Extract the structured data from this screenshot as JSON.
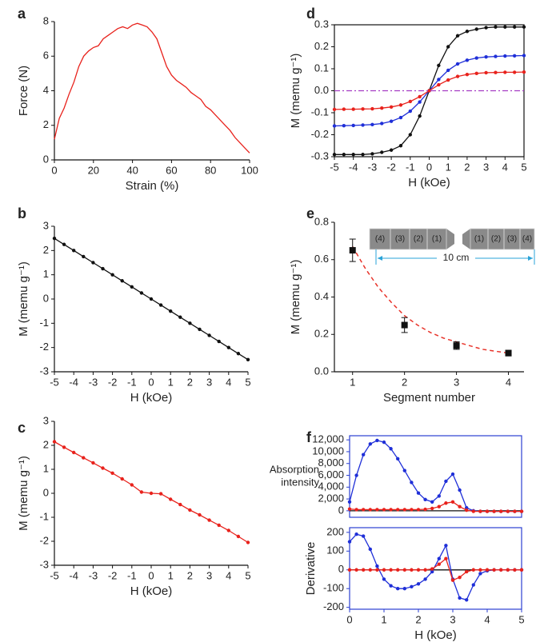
{
  "chart_data": [
    {
      "type": "line",
      "label": "a",
      "xlabel": "Strain (%)",
      "ylabel": "Force (N)",
      "frame": "open",
      "xlim": [
        0,
        100
      ],
      "xticks": [
        0,
        20,
        40,
        60,
        80,
        100
      ],
      "ylim": [
        0,
        8
      ],
      "yticks": [
        0,
        2,
        4,
        6,
        8
      ],
      "x": [
        0,
        2.5,
        5,
        7.5,
        10,
        12.5,
        15,
        17.5,
        20,
        22.5,
        25,
        27.5,
        30,
        32.5,
        35,
        37.5,
        40,
        42.5,
        45,
        47.5,
        50,
        52.5,
        55,
        57.5,
        60,
        62.5,
        65,
        67.5,
        70,
        72.5,
        75,
        77.5,
        80,
        82.5,
        85,
        87.5,
        90,
        92.5,
        95,
        97.5,
        100
      ],
      "series": [
        {
          "color": "#e8221c",
          "values": [
            1.2,
            2.4,
            3.0,
            3.8,
            4.5,
            5.4,
            6.0,
            6.3,
            6.5,
            6.6,
            7.0,
            7.2,
            7.4,
            7.6,
            7.7,
            7.6,
            7.8,
            7.9,
            7.8,
            7.7,
            7.4,
            7.0,
            6.2,
            5.4,
            4.9,
            4.6,
            4.4,
            4.2,
            3.9,
            3.7,
            3.5,
            3.1,
            2.9,
            2.6,
            2.3,
            2.0,
            1.7,
            1.3,
            1.0,
            0.7,
            0.4
          ]
        }
      ]
    },
    {
      "type": "line",
      "label": "b",
      "xlabel": "H (kOe)",
      "ylabel": "M (memu g⁻¹)",
      "frame": "open",
      "xlim": [
        -5,
        5
      ],
      "xticks": [
        -5,
        -4,
        -3,
        -2,
        -1,
        0,
        1,
        2,
        3,
        4,
        5
      ],
      "ylim": [
        -3,
        3
      ],
      "yticks": [
        -3,
        -2,
        -1,
        0,
        1,
        2,
        3
      ],
      "x": [
        -5,
        -4.5,
        -4,
        -3.5,
        -3,
        -2.5,
        -2,
        -1.5,
        -1,
        -0.5,
        0,
        0.5,
        1,
        1.5,
        2,
        2.5,
        3,
        3.5,
        4,
        4.5,
        5
      ],
      "series": [
        {
          "color": "#111111",
          "marker": true,
          "values": [
            2.5,
            2.25,
            2.0,
            1.75,
            1.5,
            1.25,
            1.0,
            0.75,
            0.5,
            0.25,
            0,
            -0.25,
            -0.5,
            -0.75,
            -1.0,
            -1.25,
            -1.5,
            -1.75,
            -2.0,
            -2.25,
            -2.5
          ]
        }
      ]
    },
    {
      "type": "line",
      "label": "c",
      "xlabel": "H (kOe)",
      "ylabel": "M (memu g⁻¹)",
      "frame": "open",
      "xlim": [
        -5,
        5
      ],
      "xticks": [
        -5,
        -4,
        -3,
        -2,
        -1,
        0,
        1,
        2,
        3,
        4,
        5
      ],
      "ylim": [
        -3,
        3
      ],
      "yticks": [
        -3,
        -2,
        -1,
        0,
        1,
        2,
        3
      ],
      "x": [
        -5,
        -4.5,
        -4,
        -3.5,
        -3,
        -2.5,
        -2,
        -1.5,
        -1,
        -0.5,
        0,
        0.5,
        1,
        1.5,
        2,
        2.5,
        3,
        3.5,
        4,
        4.5,
        5
      ],
      "series": [
        {
          "color": "#e8221c",
          "marker": true,
          "values": [
            2.15,
            1.92,
            1.7,
            1.48,
            1.27,
            1.05,
            0.84,
            0.6,
            0.35,
            0.05,
            0,
            -0.02,
            -0.25,
            -0.47,
            -0.7,
            -0.9,
            -1.12,
            -1.33,
            -1.55,
            -1.8,
            -2.05
          ]
        }
      ]
    },
    {
      "type": "line",
      "label": "d",
      "xlabel": "H (kOe)",
      "ylabel": "M (memu g⁻¹)",
      "frame": "box",
      "xlim": [
        -5,
        5
      ],
      "xticks": [
        -5,
        -4,
        -3,
        -2,
        -1,
        0,
        1,
        2,
        3,
        4,
        5
      ],
      "ylim": [
        -0.3,
        0.3
      ],
      "yticks": [
        -0.3,
        -0.2,
        -0.1,
        {
          "value": 0,
          "label": "0.0"
        },
        0.1,
        0.2,
        0.3
      ],
      "x": [
        -5,
        -4.5,
        -4,
        -3.5,
        -3,
        -2.5,
        -2,
        -1.5,
        -1,
        -0.5,
        0,
        0.5,
        1,
        1.5,
        2,
        2.5,
        3,
        3.5,
        4,
        4.5,
        5
      ],
      "series": [
        {
          "color": "#111111",
          "marker": true,
          "values": [
            -0.29,
            -0.29,
            -0.29,
            -0.29,
            -0.287,
            -0.28,
            -0.27,
            -0.25,
            -0.2,
            -0.115,
            0,
            0.115,
            0.2,
            0.25,
            0.27,
            0.28,
            0.287,
            0.29,
            0.29,
            0.29,
            0.29
          ]
        },
        {
          "color": "#1f2fd8",
          "marker": true,
          "values": [
            -0.16,
            -0.159,
            -0.158,
            -0.156,
            -0.154,
            -0.149,
            -0.139,
            -0.122,
            -0.093,
            -0.051,
            0,
            0.051,
            0.093,
            0.122,
            0.139,
            0.149,
            0.154,
            0.156,
            0.158,
            0.159,
            0.16
          ]
        },
        {
          "color": "#e8221c",
          "marker": true,
          "values": [
            -0.085,
            -0.084,
            -0.084,
            -0.083,
            -0.082,
            -0.079,
            -0.074,
            -0.065,
            -0.049,
            -0.027,
            0,
            0.027,
            0.049,
            0.065,
            0.074,
            0.079,
            0.082,
            0.083,
            0.084,
            0.084,
            0.085
          ]
        },
        {
          "color": "#a43cc4",
          "dash": true,
          "values": [
            0,
            0,
            0,
            0,
            0,
            0,
            0,
            0,
            0,
            0,
            0,
            0,
            0,
            0,
            0,
            0,
            0,
            0,
            0,
            0,
            0
          ]
        }
      ]
    },
    {
      "type": "errorbar",
      "label": "e",
      "xlabel": "Segment number",
      "ylabel": "M (memu g⁻¹)",
      "frame": "open",
      "xlim": [
        0.65,
        4.3
      ],
      "xticks": [
        1,
        2,
        3,
        4
      ],
      "ylim": [
        0,
        0.8
      ],
      "yticks": [
        {
          "value": 0,
          "label": "0.0"
        },
        0.2,
        0.4,
        0.6,
        0.8
      ],
      "x": [
        1,
        2,
        3,
        4
      ],
      "values": [
        0.65,
        0.25,
        0.14,
        0.1
      ],
      "errors": [
        0.06,
        0.04,
        0.02,
        0.015
      ],
      "color": "#111111",
      "fit": {
        "color": "#e8332a",
        "x": [
          1,
          1.25,
          1.5,
          1.75,
          2,
          2.25,
          2.5,
          2.75,
          3,
          3.25,
          3.5,
          3.75,
          4
        ],
        "values": [
          0.67,
          0.55,
          0.45,
          0.37,
          0.3,
          0.25,
          0.21,
          0.18,
          0.16,
          0.14,
          0.12,
          0.11,
          0.1
        ]
      },
      "inset_labels": [
        "(4)",
        "(3)",
        "(2)",
        "(1)",
        "(1)",
        "(2)",
        "(3)",
        "(4)"
      ],
      "inset_label_colors": [
        "#c020c0",
        "#2a2ad8",
        "#222222",
        "#e02020",
        "#e02020",
        "#222222",
        "#2a2ad8",
        "#c020c0"
      ],
      "inset_length": "10 cm",
      "inset_length_color": "#2aa3d8"
    },
    {
      "type": "line",
      "label": "f",
      "ylabel": [
        "Absorption",
        "intensity"
      ],
      "frame": "box",
      "axis_color": "#2b3fd1",
      "xlim": [
        0,
        5
      ],
      "ylim": [
        -1100,
        12700
      ],
      "yticks": [
        0,
        {
          "value": 2000,
          "label": "2,000"
        },
        {
          "value": 4000,
          "label": "4,000"
        },
        {
          "value": 6000,
          "label": "6,000"
        },
        {
          "value": 8000,
          "label": "8,000"
        },
        {
          "value": 10000,
          "label": "10,000"
        },
        {
          "value": 12000,
          "label": "12,000"
        }
      ],
      "x": [
        0,
        0.2,
        0.4,
        0.6,
        0.8,
        1.0,
        1.2,
        1.4,
        1.6,
        1.8,
        2.0,
        2.2,
        2.4,
        2.6,
        2.8,
        3.0,
        3.2,
        3.4,
        3.6,
        3.8,
        4.0,
        4.2,
        4.4,
        4.6,
        4.8,
        5.0
      ],
      "series": [
        {
          "color": "#111111",
          "values": [
            0,
            0,
            0,
            0,
            0,
            0,
            0,
            0,
            0,
            0,
            0,
            0,
            0,
            0,
            0,
            0,
            0,
            0,
            0,
            0,
            0,
            0,
            0,
            0,
            0,
            0
          ]
        },
        {
          "color": "#1f2fd8",
          "marker": true,
          "values": [
            1500,
            6000,
            9500,
            11300,
            11900,
            11600,
            10500,
            8800,
            6800,
            4800,
            3000,
            1900,
            1500,
            2500,
            5000,
            6200,
            3500,
            500,
            0,
            -100,
            -100,
            -100,
            -100,
            -100,
            -100,
            -100
          ]
        },
        {
          "color": "#e8221c",
          "marker": true,
          "values": [
            300,
            200,
            200,
            200,
            200,
            200,
            200,
            200,
            200,
            200,
            200,
            250,
            400,
            700,
            1300,
            1500,
            700,
            100,
            -100,
            -100,
            -100,
            -100,
            -100,
            -100,
            -100,
            -100
          ]
        }
      ]
    },
    {
      "type": "line",
      "xlabel": "H (kOe)",
      "ylabel": "Derivative",
      "frame": "box",
      "axis_color": "#2b3fd1",
      "xlim": [
        0,
        5
      ],
      "xticks": [
        0,
        1,
        2,
        3,
        4,
        5
      ],
      "ylim": [
        -210,
        225
      ],
      "yticks": [
        -200,
        -100,
        0,
        100,
        200
      ],
      "x": [
        0,
        0.2,
        0.4,
        0.6,
        0.8,
        1.0,
        1.2,
        1.4,
        1.6,
        1.8,
        2.0,
        2.2,
        2.4,
        2.6,
        2.8,
        3.0,
        3.2,
        3.4,
        3.6,
        3.8,
        4.0,
        4.2,
        4.4,
        4.6,
        4.8,
        5.0
      ],
      "series": [
        {
          "color": "#111111",
          "values": [
            0,
            0,
            0,
            0,
            0,
            0,
            0,
            0,
            0,
            0,
            0,
            0,
            0,
            0,
            0,
            0,
            0,
            0,
            0,
            0,
            0,
            0,
            0,
            0,
            0,
            0
          ]
        },
        {
          "color": "#1f2fd8",
          "marker": true,
          "values": [
            150,
            190,
            180,
            110,
            20,
            -50,
            -85,
            -100,
            -100,
            -90,
            -75,
            -50,
            -10,
            60,
            130,
            -50,
            -150,
            -160,
            -80,
            -20,
            -5,
            0,
            0,
            0,
            0,
            0
          ]
        },
        {
          "color": "#e8221c",
          "marker": true,
          "values": [
            0,
            0,
            0,
            0,
            0,
            0,
            0,
            0,
            0,
            0,
            0,
            0,
            5,
            30,
            60,
            -55,
            -40,
            -10,
            0,
            0,
            0,
            0,
            0,
            0,
            0,
            0
          ]
        }
      ]
    }
  ]
}
